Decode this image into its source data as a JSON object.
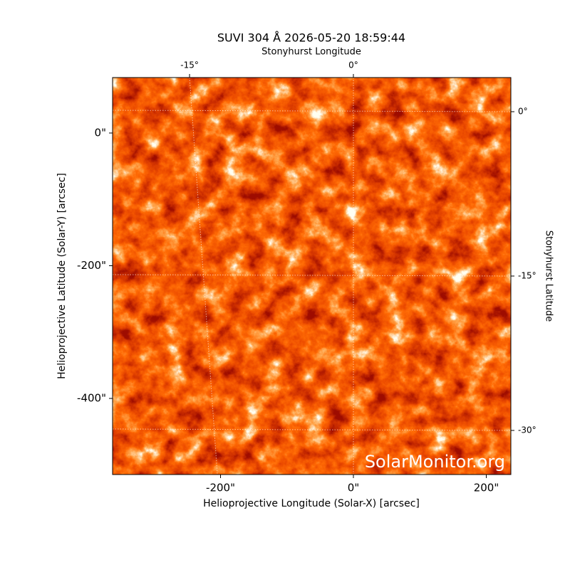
{
  "chart_data": {
    "type": "image",
    "title": "SUVI 304 Å 2026-05-20 18:59:44",
    "xlabel": "Helioprojective Longitude (Solar-X) [arcsec]",
    "ylabel": "Helioprojective Latitude (Solar-Y) [arcsec]",
    "xlim": [
      -362.5,
      237
    ],
    "ylim": [
      -514.7,
      83.6
    ],
    "xticks": [
      {
        "value": -200,
        "label": "-200\""
      },
      {
        "value": 0,
        "label": "0\""
      },
      {
        "value": 200,
        "label": "200\""
      }
    ],
    "yticks": [
      {
        "value": 0,
        "label": "0\""
      },
      {
        "value": -200,
        "label": "-200\""
      },
      {
        "value": -400,
        "label": "-400\""
      }
    ],
    "top_axis_label": "Stonyhurst Longitude",
    "top_ticks": [
      {
        "value": -15,
        "label": "-15°"
      },
      {
        "value": 0,
        "label": "0°"
      }
    ],
    "right_axis_label": "Stonyhurst Latitude",
    "right_ticks": [
      {
        "value": 0,
        "label": "0°"
      },
      {
        "value": -15,
        "label": "-15°"
      },
      {
        "value": -30,
        "label": "-30°"
      }
    ],
    "grid": true,
    "watermark": "SolarMonitor.org"
  }
}
